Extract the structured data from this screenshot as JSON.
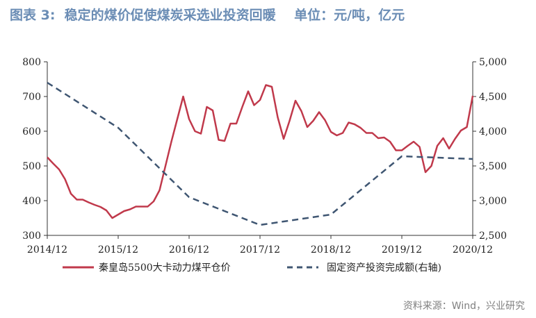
{
  "title": "图表 3:  稳定的煤价促使煤炭采选业投资回暖    单位：元/吨，亿元",
  "source": "资料来源：Wind，兴业研究",
  "colors": {
    "red": "#c0394b",
    "blue": "#3f5672",
    "title": "#6b8db5",
    "axis": "#333333"
  },
  "chart_data": {
    "type": "line",
    "x_range": [
      "2014-12",
      "2020-12"
    ],
    "x_ticks": [
      "2014/12",
      "2015/12",
      "2016/12",
      "2017/12",
      "2018/12",
      "2019/12",
      "2020/12"
    ],
    "y_left": {
      "range": [
        300,
        800
      ],
      "ticks": [
        "800",
        "700",
        "600",
        "500",
        "400",
        "300"
      ]
    },
    "y_right": {
      "range": [
        2500,
        5000
      ],
      "ticks": [
        "5,000",
        "4,500",
        "4,000",
        "3,500",
        "3,000",
        "2,500"
      ]
    },
    "series": [
      {
        "name": "秦皇岛5500大卡动力煤平仓价",
        "axis": "left",
        "style": "solid",
        "points": [
          [
            "2014-12",
            525
          ],
          [
            "2015-01",
            507
          ],
          [
            "2015-02",
            490
          ],
          [
            "2015-03",
            462
          ],
          [
            "2015-04",
            420
          ],
          [
            "2015-05",
            403
          ],
          [
            "2015-06",
            403
          ],
          [
            "2015-07",
            395
          ],
          [
            "2015-08",
            388
          ],
          [
            "2015-09",
            382
          ],
          [
            "2015-10",
            372
          ],
          [
            "2015-11",
            350
          ],
          [
            "2015-12",
            360
          ],
          [
            "2016-01",
            370
          ],
          [
            "2016-02",
            375
          ],
          [
            "2016-03",
            383
          ],
          [
            "2016-04",
            383
          ],
          [
            "2016-05",
            383
          ],
          [
            "2016-06",
            398
          ],
          [
            "2016-07",
            430
          ],
          [
            "2016-08",
            500
          ],
          [
            "2016-09",
            570
          ],
          [
            "2016-10",
            635
          ],
          [
            "2016-11",
            700
          ],
          [
            "2016-12",
            635
          ],
          [
            "2017-01",
            600
          ],
          [
            "2017-02",
            593
          ],
          [
            "2017-03",
            670
          ],
          [
            "2017-04",
            660
          ],
          [
            "2017-05",
            575
          ],
          [
            "2017-06",
            572
          ],
          [
            "2017-07",
            622
          ],
          [
            "2017-08",
            622
          ],
          [
            "2017-09",
            670
          ],
          [
            "2017-10",
            715
          ],
          [
            "2017-11",
            675
          ],
          [
            "2017-12",
            690
          ],
          [
            "2018-01",
            733
          ],
          [
            "2018-02",
            728
          ],
          [
            "2018-03",
            640
          ],
          [
            "2018-04",
            578
          ],
          [
            "2018-05",
            630
          ],
          [
            "2018-06",
            688
          ],
          [
            "2018-07",
            658
          ],
          [
            "2018-08",
            612
          ],
          [
            "2018-09",
            630
          ],
          [
            "2018-10",
            655
          ],
          [
            "2018-11",
            632
          ],
          [
            "2018-12",
            598
          ],
          [
            "2019-01",
            588
          ],
          [
            "2019-02",
            595
          ],
          [
            "2019-03",
            625
          ],
          [
            "2019-04",
            620
          ],
          [
            "2019-05",
            610
          ],
          [
            "2019-06",
            595
          ],
          [
            "2019-07",
            595
          ],
          [
            "2019-08",
            580
          ],
          [
            "2019-09",
            582
          ],
          [
            "2019-10",
            570
          ],
          [
            "2019-11",
            545
          ],
          [
            "2019-12",
            545
          ],
          [
            "2020-01",
            558
          ],
          [
            "2020-02",
            570
          ],
          [
            "2020-03",
            555
          ],
          [
            "2020-04",
            482
          ],
          [
            "2020-05",
            500
          ],
          [
            "2020-06",
            558
          ],
          [
            "2020-07",
            580
          ],
          [
            "2020-08",
            550
          ],
          [
            "2020-09",
            578
          ],
          [
            "2020-10",
            602
          ],
          [
            "2020-11",
            612
          ],
          [
            "2020-12",
            702
          ]
        ]
      },
      {
        "name": "固定资产投资完成额(右轴)",
        "axis": "right",
        "style": "dashed",
        "points": [
          [
            "2014-12",
            4700
          ],
          [
            "2015-12",
            4050
          ],
          [
            "2016-12",
            3050
          ],
          [
            "2017-12",
            2650
          ],
          [
            "2018-12",
            2800
          ],
          [
            "2019-12",
            3640
          ],
          [
            "2020-12",
            3600
          ]
        ]
      }
    ]
  }
}
